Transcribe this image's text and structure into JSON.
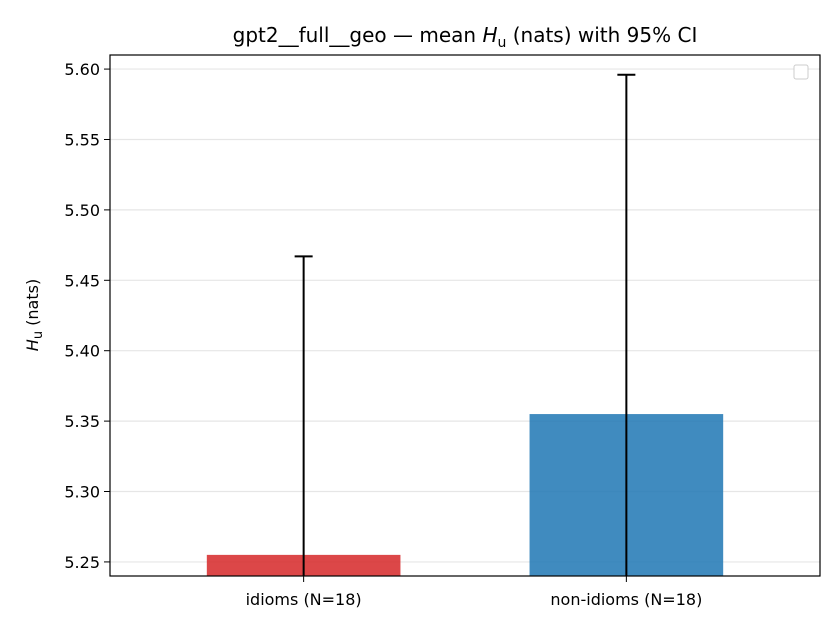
{
  "chart_data": {
    "type": "bar",
    "title_prefix": "gpt2__full__geo — mean ",
    "title_symbol": "H",
    "title_subscript": "u",
    "title_suffix": " (nats) with 95% CI",
    "ylabel_symbol": "H",
    "ylabel_subscript": "u",
    "ylabel_suffix": " (nats)",
    "xlabel": "",
    "categories": [
      "idioms (N=18)",
      "non-idioms (N=18)"
    ],
    "values": [
      5.255,
      5.355
    ],
    "ci_upper": [
      5.467,
      5.596
    ],
    "colors": [
      "#d62728",
      "#1f77b4"
    ],
    "ylim": [
      5.24,
      5.61
    ],
    "yticks": [
      "5.25",
      "5.30",
      "5.35",
      "5.40",
      "5.45",
      "5.50",
      "5.55",
      "5.60"
    ],
    "grid": "y",
    "legend": "top-right (empty)"
  }
}
